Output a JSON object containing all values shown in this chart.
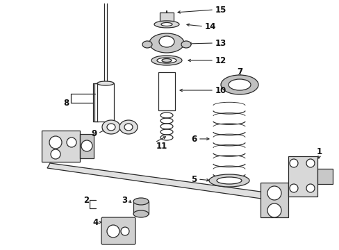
{
  "bg_color": "#ffffff",
  "line_color": "#2a2a2a",
  "label_color": "#111111",
  "figsize": [
    4.89,
    3.6
  ],
  "dpi": 100,
  "xlim": [
    0,
    489
  ],
  "ylim": [
    0,
    360
  ]
}
